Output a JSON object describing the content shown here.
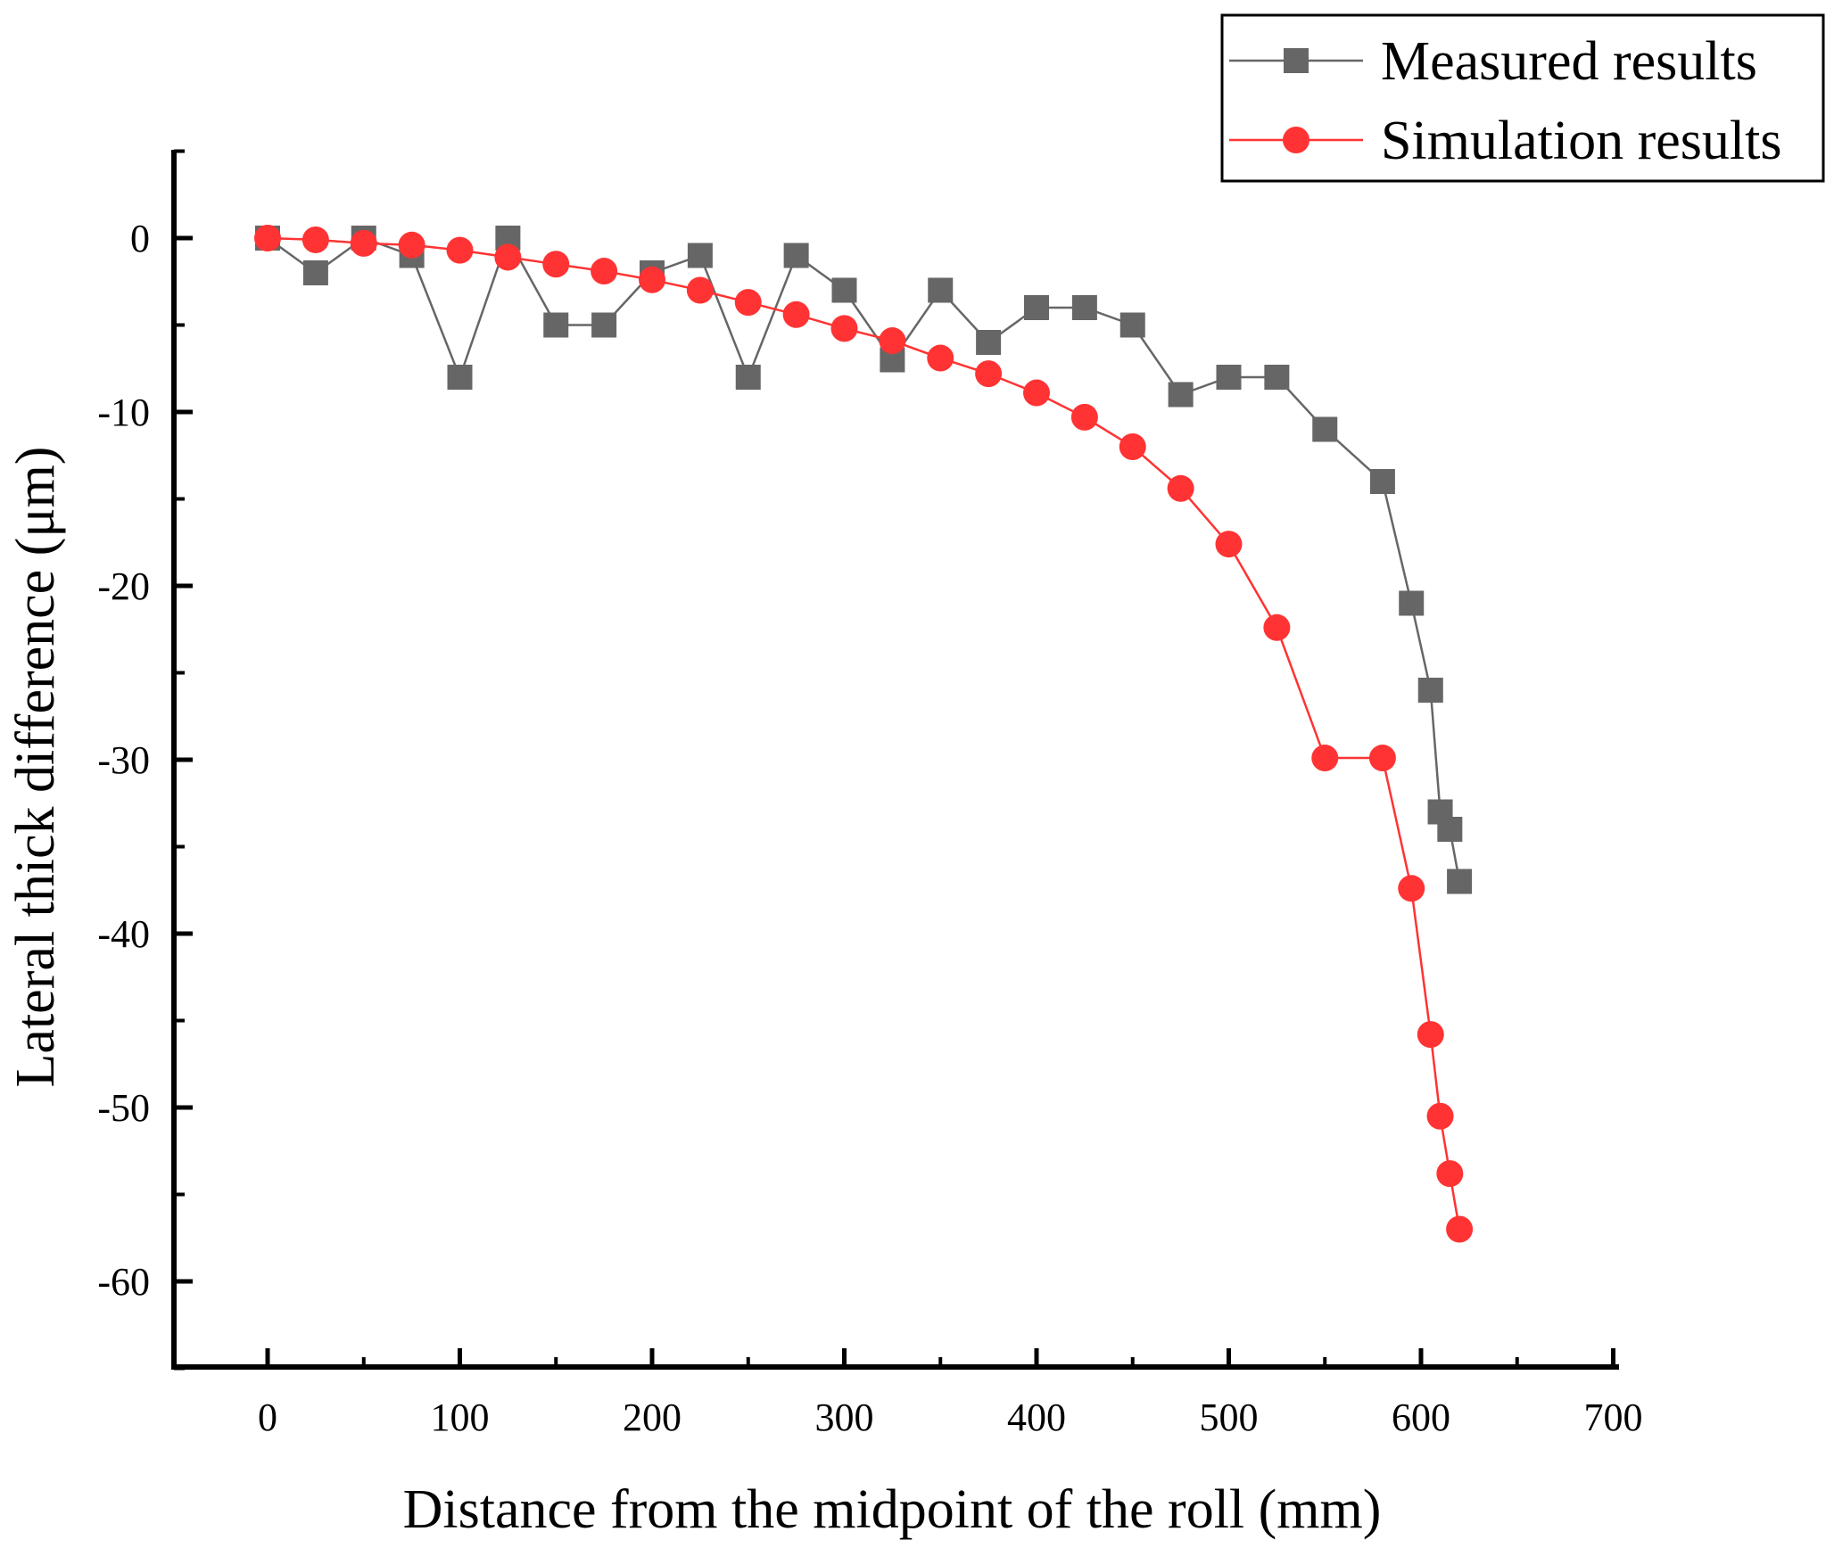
{
  "chart_data": {
    "type": "line",
    "title": "",
    "xlabel": "Distance from the midpoint of the roll (mm)",
    "ylabel": "Lateral thick difference (μm)",
    "xlim": [
      -50,
      700
    ],
    "ylim": [
      -65,
      5
    ],
    "xticks": [
      0,
      100,
      200,
      300,
      400,
      500,
      600,
      700
    ],
    "yticks": [
      0,
      -10,
      -20,
      -30,
      -40,
      -50,
      -60
    ],
    "xtick_labels": [
      "0",
      "100",
      "200",
      "300",
      "400",
      "500",
      "600",
      "700"
    ],
    "ytick_labels": [
      "0",
      "-10",
      "-20",
      "-30",
      "-40",
      "-50",
      "-60"
    ],
    "legend_position": "top-right",
    "series": [
      {
        "name": "Measured results",
        "marker": "square",
        "color": "#666666",
        "x": [
          0,
          25,
          50,
          75,
          100,
          125,
          150,
          175,
          200,
          225,
          250,
          275,
          300,
          325,
          350,
          375,
          400,
          425,
          450,
          475,
          500,
          525,
          550,
          580,
          595,
          605,
          610,
          615,
          620
        ],
        "y": [
          0,
          -2,
          0,
          -1,
          -8,
          0,
          -5,
          -5,
          -2,
          -1,
          -8,
          -1,
          -3,
          -7,
          -3,
          -6,
          -4,
          -4,
          -5,
          -9,
          -8,
          -8,
          -11,
          -14,
          -21,
          -26,
          -33,
          -34,
          -37
        ]
      },
      {
        "name": "Simulation results",
        "marker": "circle",
        "color": "#ff3333",
        "x": [
          0,
          25,
          50,
          75,
          100,
          125,
          150,
          175,
          200,
          225,
          250,
          275,
          300,
          325,
          350,
          375,
          400,
          425,
          450,
          475,
          500,
          525,
          550,
          580,
          595,
          605,
          610,
          615,
          620
        ],
        "y": [
          0,
          -0.1,
          -0.3,
          -0.4,
          -0.7,
          -1.1,
          -1.5,
          -1.9,
          -2.4,
          -3.0,
          -3.7,
          -4.4,
          -5.2,
          -5.9,
          -6.9,
          -7.8,
          -8.9,
          -10.3,
          -12.0,
          -14.4,
          -17.6,
          -22.4,
          -29.9,
          -29.9,
          -37.4,
          -45.8,
          -50.5,
          -53.8,
          -57.0
        ]
      }
    ]
  }
}
